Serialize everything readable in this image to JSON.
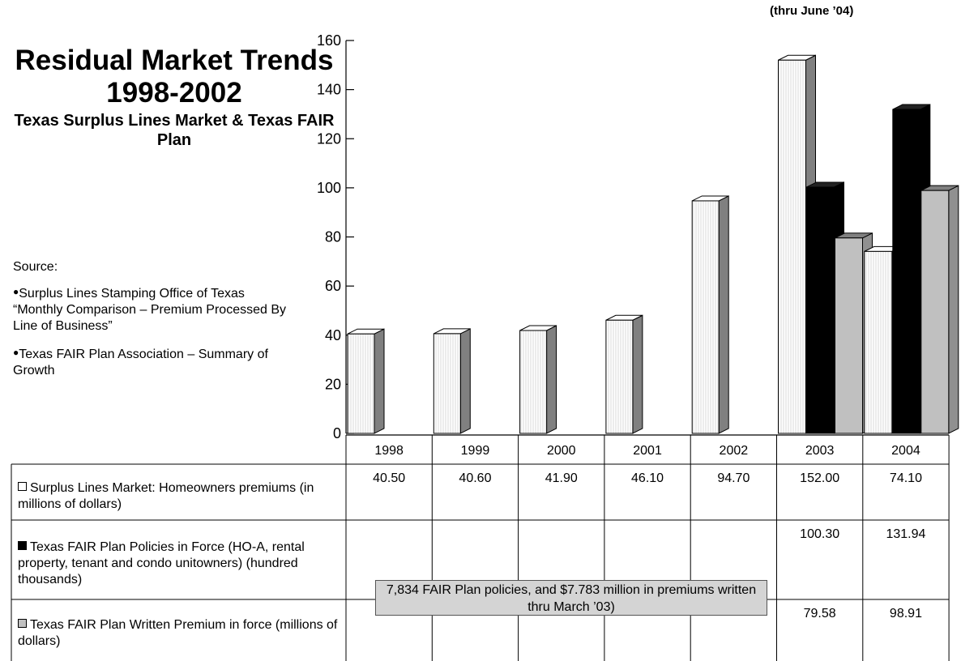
{
  "title": "Residual Market Trends 1998-2002",
  "subtitle": "Texas Surplus Lines Market & Texas FAIR Plan",
  "thru_note": "(thru June ’04)",
  "source": {
    "label": "Source:",
    "items": [
      "Surplus Lines Stamping Office of Texas “Monthly Comparison – Premium Processed By Line of Business”",
      "Texas FAIR Plan Association – Summary of Growth"
    ]
  },
  "note_box": "7,834 FAIR Plan policies, and $7.783 million in premiums written thru March ’03)",
  "colors": {
    "series1": "#ffffff",
    "series2": "#000000",
    "series3": "#c0c0c0",
    "note_box": "#d4d4d4"
  },
  "chart_data": {
    "type": "bar",
    "categories": [
      "1998",
      "1999",
      "2000",
      "2001",
      "2002",
      "2003",
      "2004"
    ],
    "ylim": [
      0,
      160
    ],
    "yticks": [
      0,
      20,
      40,
      60,
      80,
      100,
      120,
      140,
      160
    ],
    "grid": false,
    "series": [
      {
        "name": "Surplus Lines Market: Homeowners premiums (in millions of dollars)",
        "values": [
          40.5,
          40.6,
          41.9,
          46.1,
          94.7,
          152.0,
          74.1
        ],
        "labels": [
          "40.50",
          "40.60",
          "41.90",
          "46.10",
          "94.70",
          "152.00",
          "74.10"
        ]
      },
      {
        "name": "Texas FAIR Plan Policies in Force (HO-A, rental property, tenant and condo unitowners) (hundred thousands)",
        "values": [
          null,
          null,
          null,
          null,
          null,
          100.3,
          131.94
        ],
        "labels": [
          "",
          "",
          "",
          "",
          "",
          "100.30",
          "131.94"
        ]
      },
      {
        "name": "Texas FAIR Plan Written Premium in force (millions of dollars)",
        "values": [
          null,
          null,
          null,
          null,
          null,
          79.58,
          98.91
        ],
        "labels": [
          "",
          "",
          "",
          "",
          "",
          "79.58",
          "98.91"
        ]
      }
    ]
  }
}
